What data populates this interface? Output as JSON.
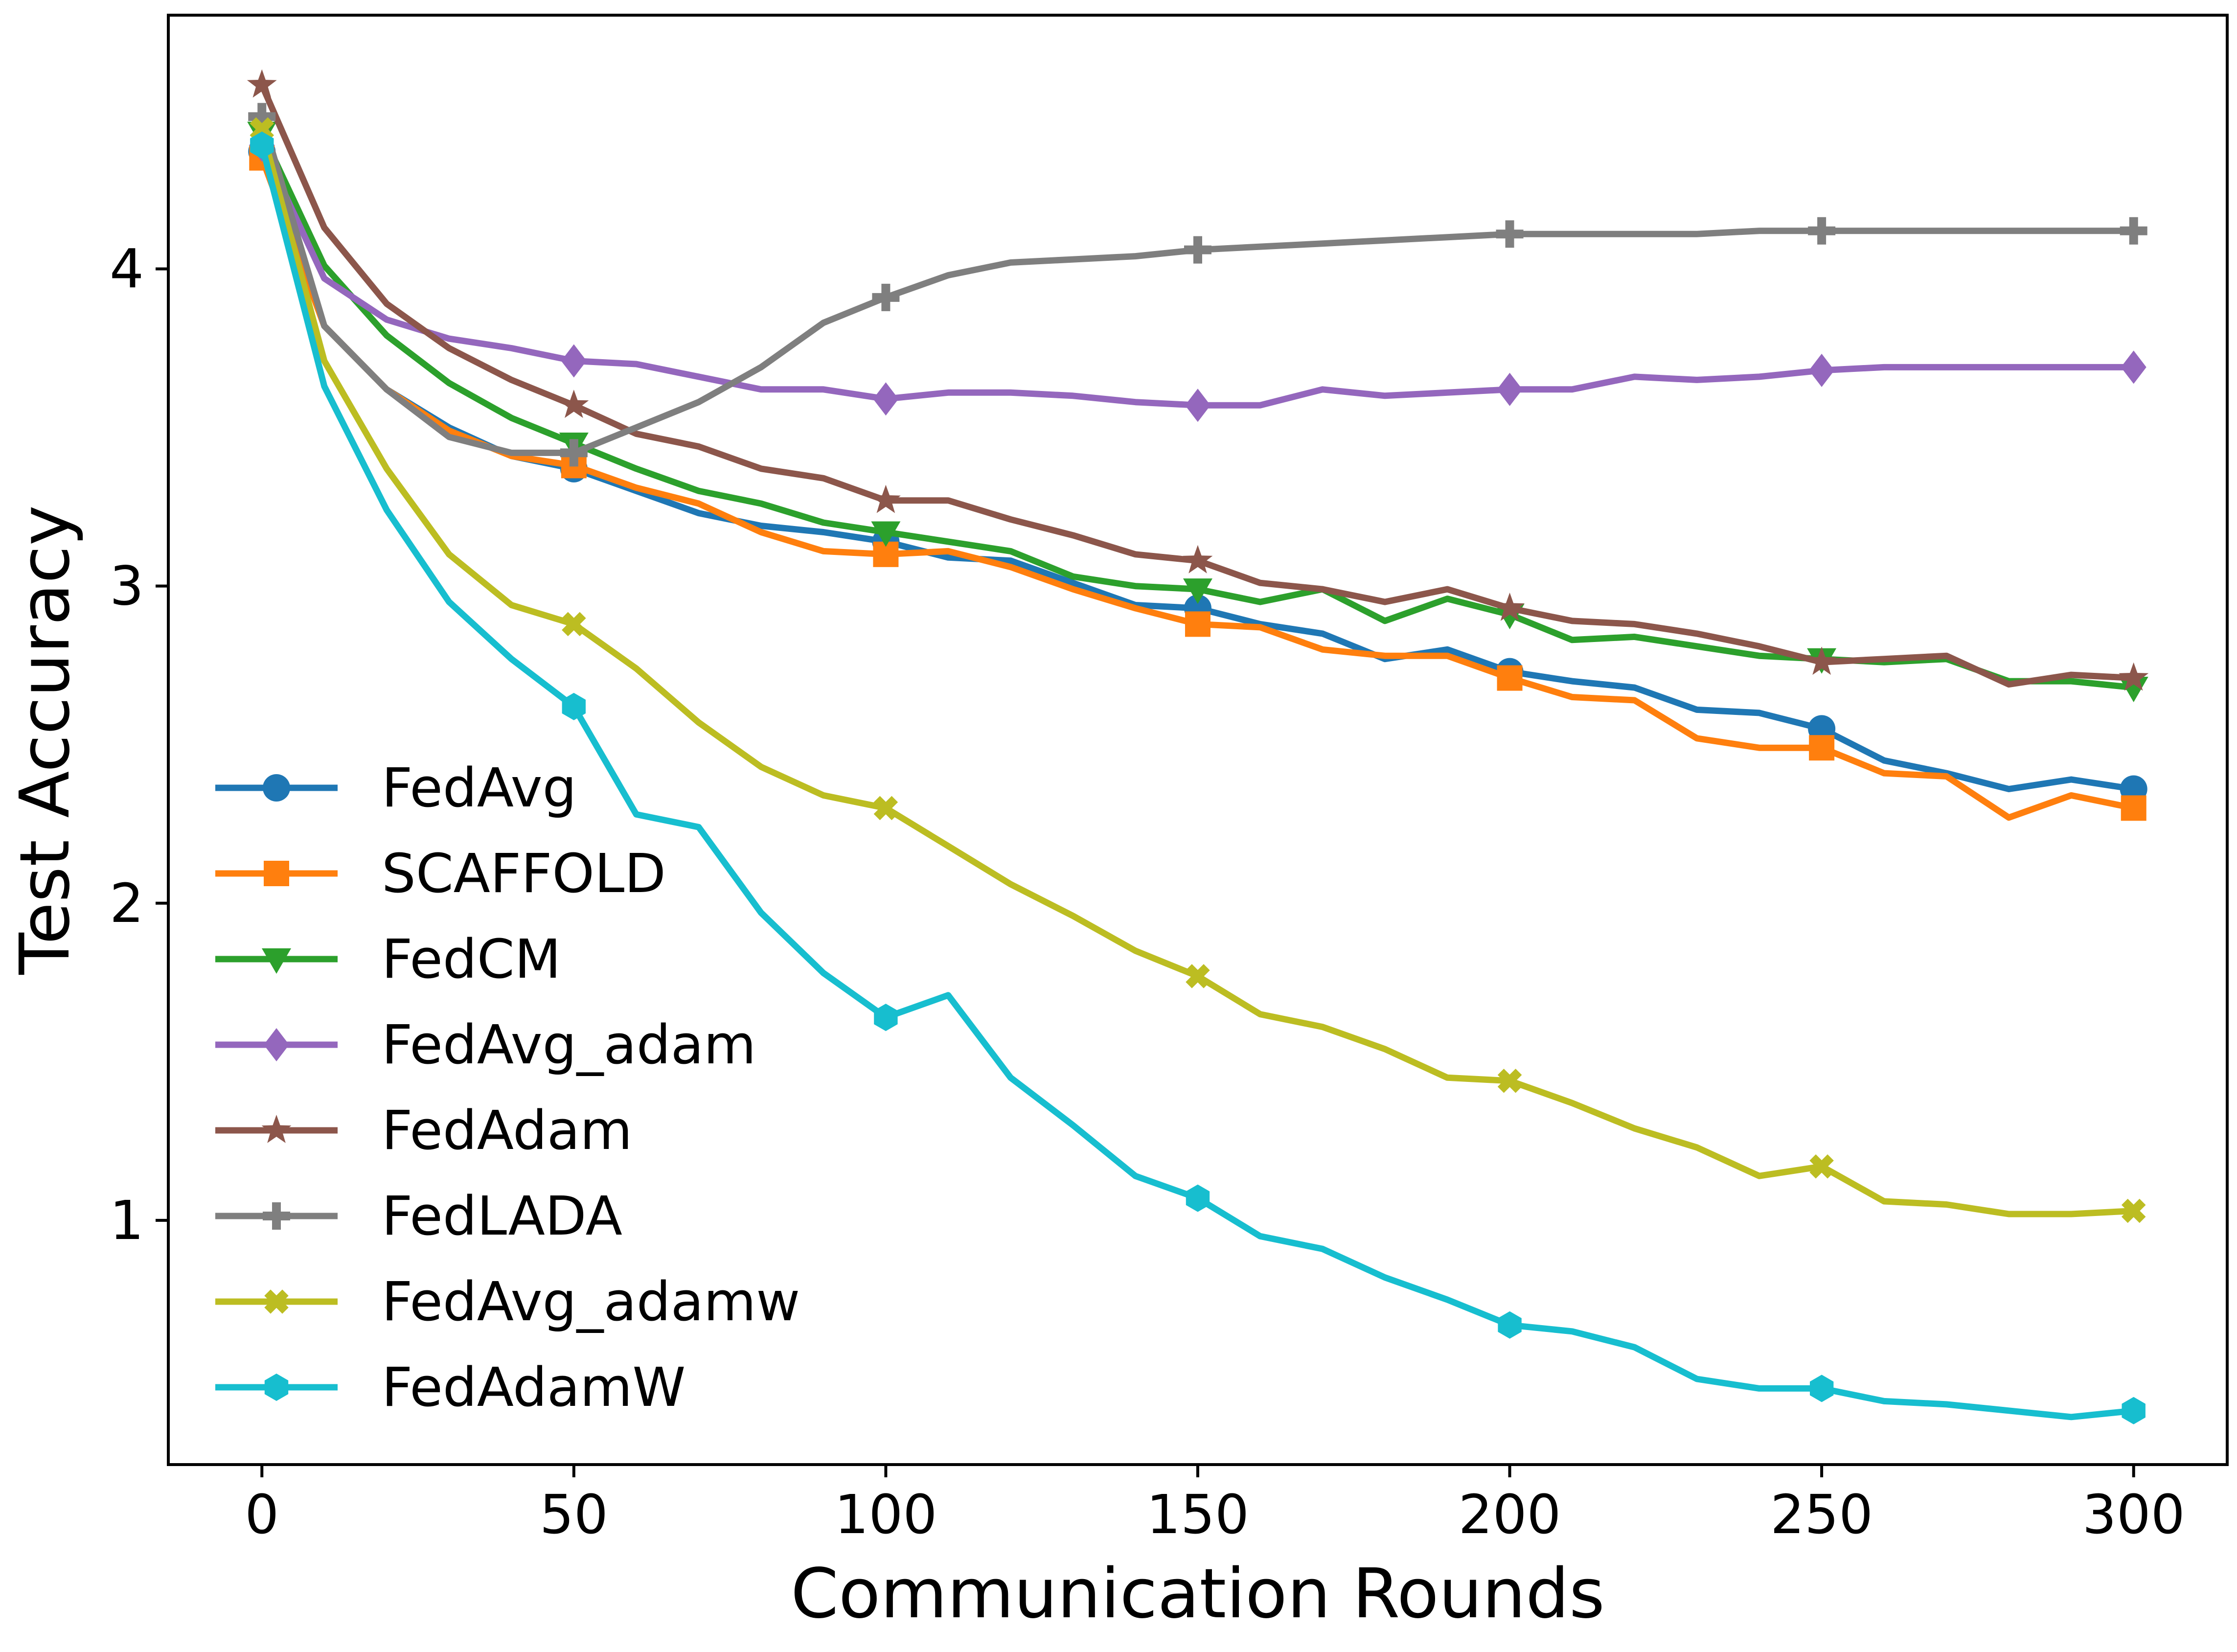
{
  "chart_data": {
    "type": "line",
    "title": "",
    "xlabel": "Communication Rounds",
    "ylabel": "Test Accuracy",
    "xlim": [
      -15,
      315
    ],
    "ylim": [
      0.23,
      4.8
    ],
    "x_ticks": [
      0,
      50,
      100,
      150,
      200,
      250,
      300
    ],
    "y_ticks": [
      1,
      2,
      3,
      4
    ],
    "grid": false,
    "legend_position": "lower-left",
    "x": [
      0,
      10,
      20,
      30,
      40,
      50,
      60,
      70,
      80,
      90,
      100,
      110,
      120,
      130,
      140,
      150,
      160,
      170,
      180,
      190,
      200,
      210,
      220,
      230,
      240,
      250,
      260,
      270,
      280,
      290,
      300
    ],
    "series": [
      {
        "name": "FedAvg",
        "color": "#1f77b4",
        "marker": "circle",
        "values": [
          4.37,
          3.82,
          3.62,
          3.5,
          3.41,
          3.37,
          3.3,
          3.23,
          3.19,
          3.17,
          3.14,
          3.09,
          3.08,
          3.01,
          2.94,
          2.93,
          2.88,
          2.85,
          2.77,
          2.8,
          2.73,
          2.7,
          2.68,
          2.61,
          2.6,
          2.55,
          2.45,
          2.41,
          2.36,
          2.39,
          2.36
        ]
      },
      {
        "name": "SCAFFOLD",
        "color": "#ff7f0e",
        "marker": "square",
        "values": [
          4.35,
          3.82,
          3.62,
          3.49,
          3.41,
          3.38,
          3.31,
          3.26,
          3.17,
          3.11,
          3.1,
          3.11,
          3.06,
          2.99,
          2.93,
          2.88,
          2.87,
          2.8,
          2.78,
          2.78,
          2.71,
          2.65,
          2.64,
          2.52,
          2.49,
          2.49,
          2.41,
          2.4,
          2.27,
          2.34,
          2.3
        ]
      },
      {
        "name": "FedCM",
        "color": "#2ca02c",
        "marker": "triangle-down",
        "values": [
          4.43,
          4.01,
          3.79,
          3.64,
          3.53,
          3.45,
          3.37,
          3.3,
          3.26,
          3.2,
          3.17,
          3.14,
          3.11,
          3.03,
          3.0,
          2.99,
          2.95,
          2.99,
          2.89,
          2.96,
          2.91,
          2.83,
          2.84,
          2.81,
          2.78,
          2.77,
          2.76,
          2.77,
          2.7,
          2.7,
          2.68
        ]
      },
      {
        "name": "FedAvg_adam",
        "color": "#9467bd",
        "marker": "diamond",
        "values": [
          4.39,
          3.97,
          3.84,
          3.78,
          3.75,
          3.71,
          3.7,
          3.66,
          3.62,
          3.62,
          3.59,
          3.61,
          3.61,
          3.6,
          3.58,
          3.57,
          3.57,
          3.62,
          3.6,
          3.61,
          3.62,
          3.62,
          3.66,
          3.65,
          3.66,
          3.68,
          3.69,
          3.69,
          3.69,
          3.69,
          3.69
        ]
      },
      {
        "name": "FedAdam",
        "color": "#8c564b",
        "marker": "star",
        "values": [
          4.58,
          4.13,
          3.89,
          3.75,
          3.65,
          3.57,
          3.48,
          3.44,
          3.37,
          3.34,
          3.27,
          3.27,
          3.21,
          3.16,
          3.1,
          3.08,
          3.01,
          2.99,
          2.95,
          2.99,
          2.93,
          2.89,
          2.88,
          2.85,
          2.81,
          2.76,
          2.77,
          2.78,
          2.69,
          2.72,
          2.71
        ]
      },
      {
        "name": "FedLADA",
        "color": "#7f7f7f",
        "marker": "plus",
        "values": [
          4.48,
          3.82,
          3.62,
          3.47,
          3.42,
          3.42,
          3.5,
          3.58,
          3.69,
          3.83,
          3.91,
          3.98,
          4.02,
          4.03,
          4.04,
          4.06,
          4.07,
          4.08,
          4.09,
          4.1,
          4.11,
          4.11,
          4.11,
          4.11,
          4.12,
          4.12,
          4.12,
          4.12,
          4.12,
          4.12,
          4.12
        ]
      },
      {
        "name": "FedAvg_adamw",
        "color": "#bcbd22",
        "marker": "x-filled",
        "values": [
          4.44,
          3.71,
          3.37,
          3.1,
          2.94,
          2.88,
          2.74,
          2.57,
          2.43,
          2.34,
          2.3,
          2.18,
          2.06,
          1.96,
          1.85,
          1.77,
          1.65,
          1.61,
          1.54,
          1.45,
          1.44,
          1.37,
          1.29,
          1.23,
          1.14,
          1.17,
          1.06,
          1.05,
          1.02,
          1.02,
          1.03
        ]
      },
      {
        "name": "FedAdamW",
        "color": "#17becf",
        "marker": "hexagon",
        "values": [
          4.39,
          3.63,
          3.24,
          2.95,
          2.77,
          2.62,
          2.28,
          2.24,
          1.97,
          1.78,
          1.64,
          1.71,
          1.45,
          1.3,
          1.14,
          1.07,
          0.95,
          0.91,
          0.82,
          0.75,
          0.67,
          0.65,
          0.6,
          0.5,
          0.47,
          0.47,
          0.43,
          0.42,
          0.4,
          0.38,
          0.4
        ]
      }
    ]
  }
}
